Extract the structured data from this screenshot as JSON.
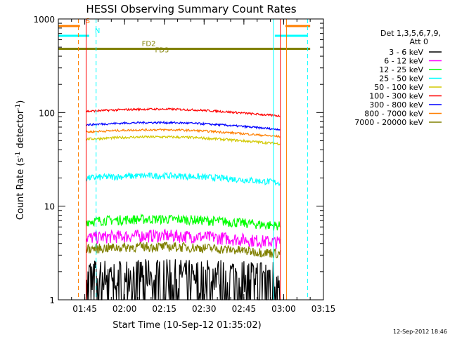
{
  "chart_data": {
    "type": "line",
    "title": "HESSI Observing Summary Count Rates",
    "xlabel": "Start Time (10-Sep-12 01:35:02)",
    "ylabel": "Count Rate (s",
    "ylabel_sup1": "-1",
    "ylabel_mid": " detector",
    "ylabel_sup2": "-1",
    "ylabel_end": ")",
    "y_scale": "log",
    "ylim": [
      1,
      1000
    ],
    "y_ticks": [
      {
        "v": 1,
        "label": "1"
      },
      {
        "v": 10,
        "label": "10"
      },
      {
        "v": 100,
        "label": "100"
      },
      {
        "v": 1000,
        "label": "1000"
      }
    ],
    "xlim": [
      "01:35:02",
      "03:15:00"
    ],
    "x_ticks": [
      "01:45",
      "02:00",
      "02:15",
      "02:30",
      "02:45",
      "03:00",
      "03:15"
    ],
    "legend_header": [
      "Det 1,3,5,6,7,9,",
      "Att 0"
    ],
    "legend_position": "right",
    "series": [
      {
        "name": "3 - 6 keV",
        "color": "#000000",
        "level": 1.7,
        "jitter": 0.5,
        "spiky": true
      },
      {
        "name": "6 - 12 keV",
        "color": "#ff00ff",
        "level": 4.6,
        "jitter": 0.16
      },
      {
        "name": "12 - 25 keV",
        "color": "#00ff00",
        "level": 6.9,
        "jitter": 0.12
      },
      {
        "name": "25 - 50 keV",
        "color": "#00ffff",
        "level": 20,
        "jitter": 0.08
      },
      {
        "name": "50 - 100 keV",
        "color": "#d2c800",
        "level": 52,
        "jitter": 0.03
      },
      {
        "name": "100 - 300 keV",
        "color": "#ff0000",
        "level": 103,
        "jitter": 0.025
      },
      {
        "name": "300 - 800 keV",
        "color": "#0000ff",
        "level": 74,
        "jitter": 0.025
      },
      {
        "name": "800 - 7000 keV",
        "color": "#ff7f00",
        "level": 62,
        "jitter": 0.025
      },
      {
        "name": "7000 - 20000 keV",
        "color": "#808000",
        "level": 3.5,
        "jitter": 0.12
      }
    ],
    "data_start": "01:45:30",
    "data_end": "02:58:45",
    "annotations": [
      {
        "label": "S",
        "color": "#ff7f00",
        "type": "flag-bar",
        "ranges": [
          [
            "01:35:02",
            "01:43:10"
          ],
          [
            "03:00:40",
            "03:10:00"
          ]
        ],
        "level": 840
      },
      {
        "label": "N",
        "color": "#00ffff",
        "type": "flag-bar",
        "ranges": [
          [
            "01:35:02",
            "01:46:40"
          ],
          [
            "02:56:40",
            "03:09:00"
          ]
        ],
        "level": 660
      },
      {
        "label": "FD2",
        "color": "#808000",
        "type": "flag-bar",
        "ranges": [
          [
            "01:35:02",
            "03:10:00"
          ]
        ],
        "level": 480
      },
      {
        "label": "FD3",
        "color": "#808000",
        "type": "text",
        "at": "02:11:30",
        "level": 455
      }
    ],
    "event_lines": [
      {
        "time": "01:42:36",
        "color": "#ff7f00",
        "style": "dashed"
      },
      {
        "time": "01:45:30",
        "color": "#ff0000",
        "style": "solid"
      },
      {
        "time": "01:49:16",
        "color": "#00ffff",
        "style": "dashed"
      },
      {
        "time": "02:56:08",
        "color": "#00ffff",
        "style": "solid"
      },
      {
        "time": "02:58:45",
        "color": "#ff0000",
        "style": "solid"
      },
      {
        "time": "03:01:04",
        "color": "#ff7f00",
        "style": "solid"
      },
      {
        "time": "03:09:00",
        "color": "#00ffff",
        "style": "dashed"
      }
    ],
    "grid": false
  },
  "footer": {
    "timestamp": "12-Sep-2012 18:46"
  }
}
